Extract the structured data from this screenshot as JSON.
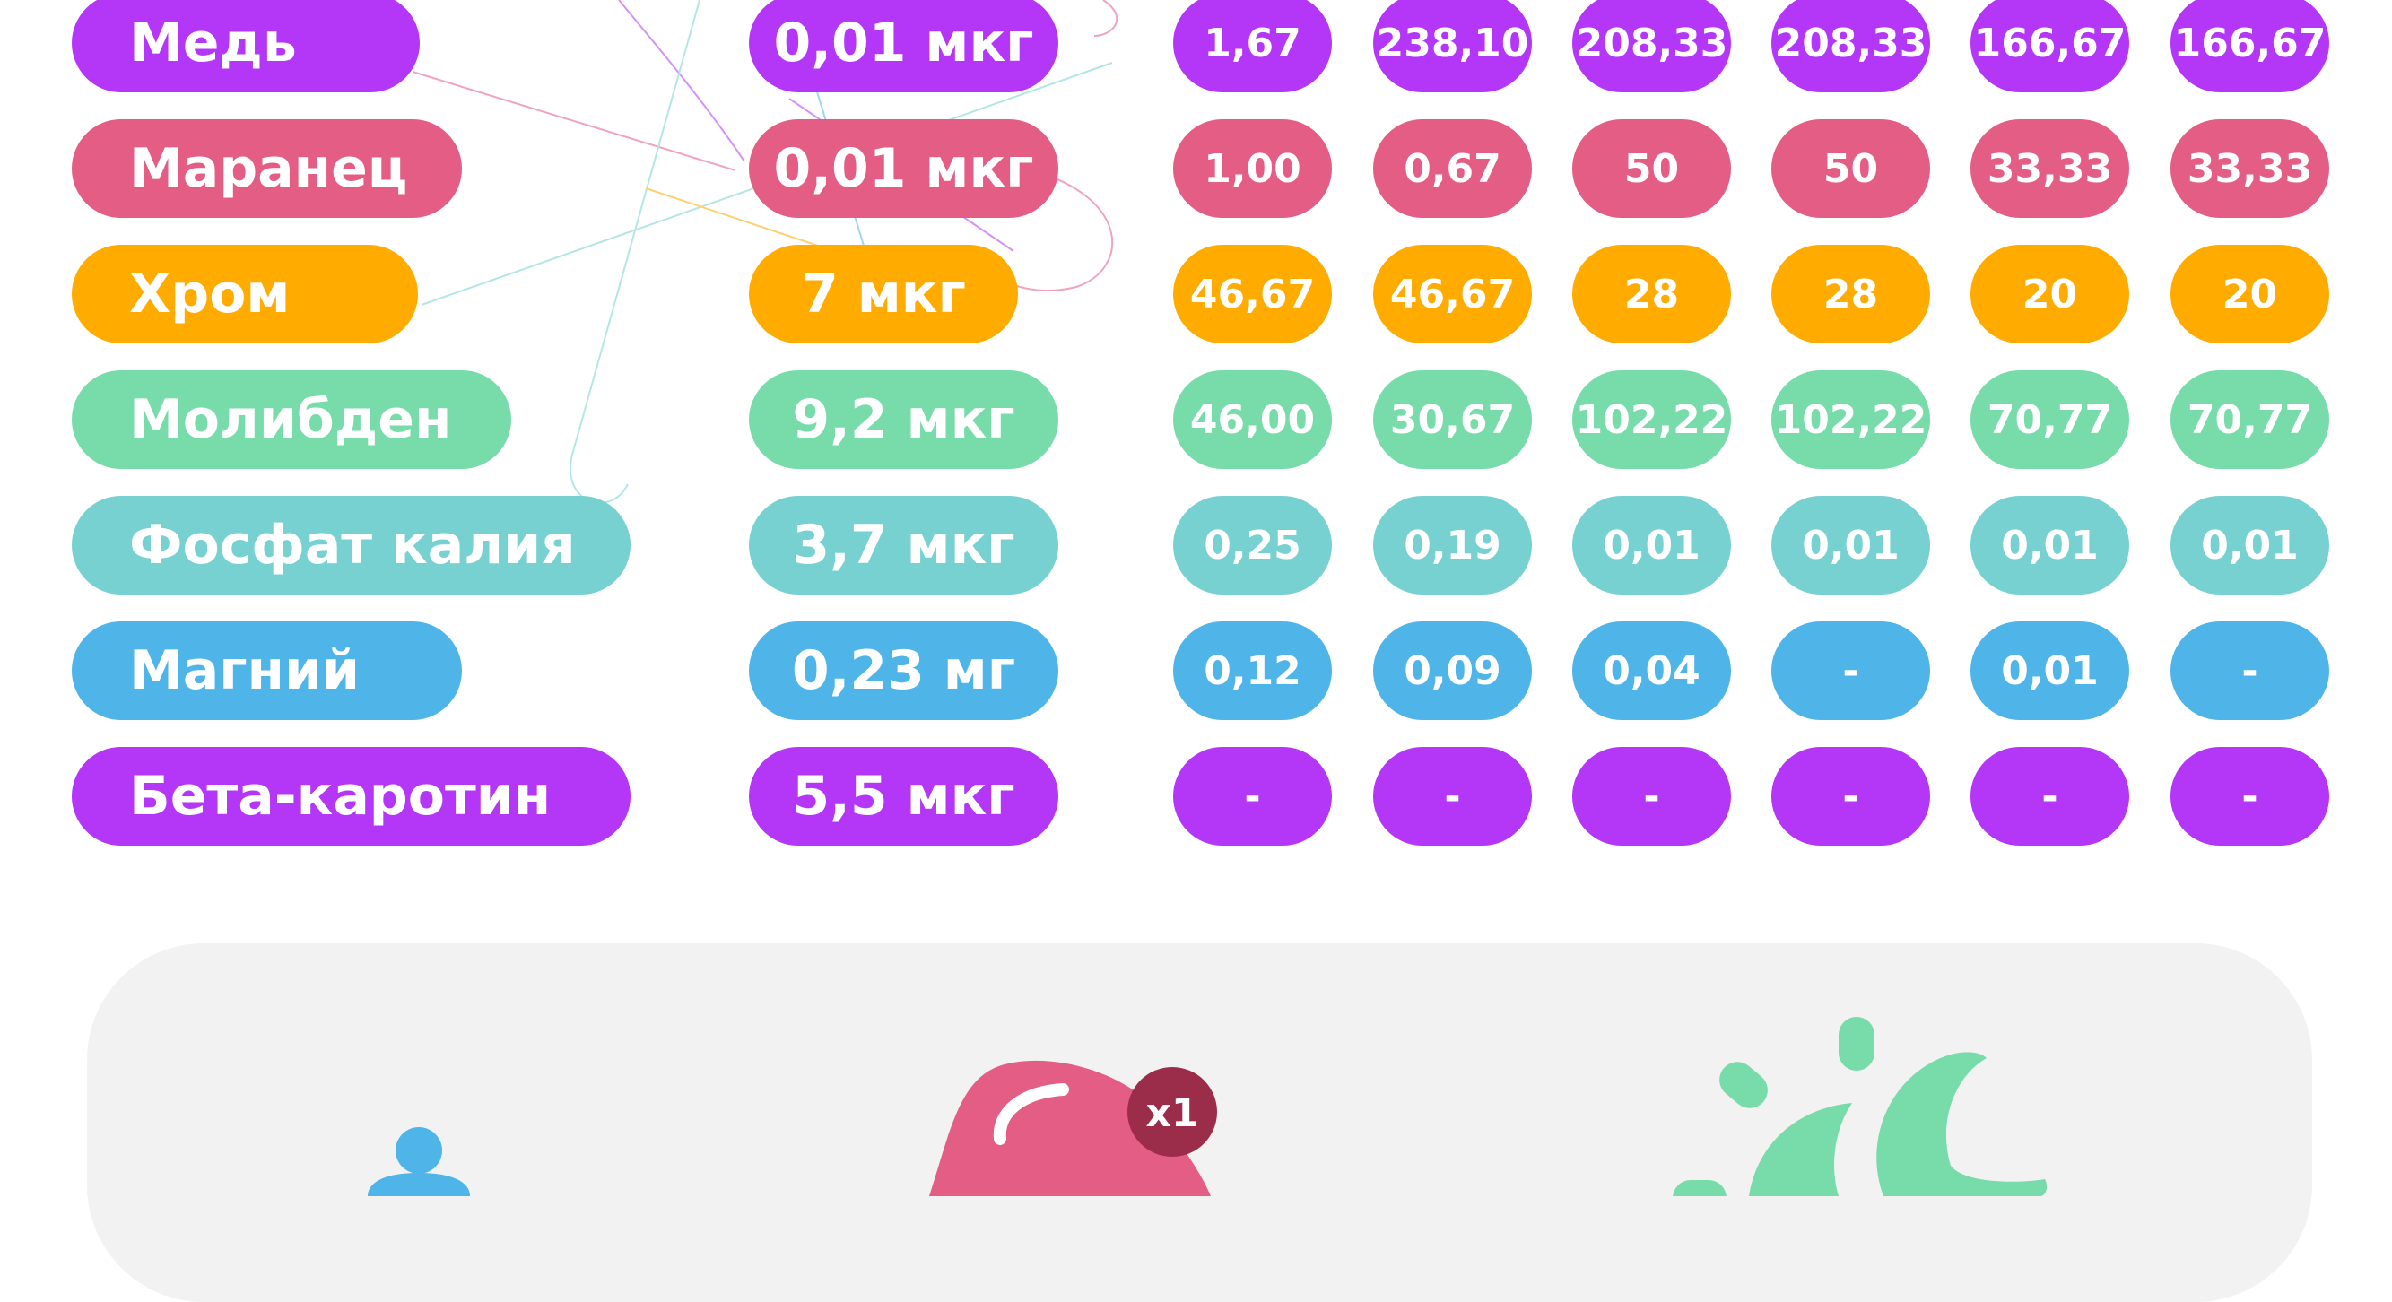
{
  "colors": {
    "purple": "#b436f7",
    "pink": "#e35d84",
    "orange": "#ffab00",
    "green": "#77dbaa",
    "teal": "#78d1d1",
    "blue": "#4fb4e8",
    "panel": "#f2f2f2",
    "badge": "#9b2d4b"
  },
  "rows": [
    {
      "name": "Медь",
      "amount": "0,01 мкг",
      "values": [
        "1,67",
        "238,10",
        "208,33",
        "208,33",
        "166,67",
        "166,67"
      ]
    },
    {
      "name": "Маранец",
      "amount": "0,01 мкг",
      "values": [
        "1,00",
        "0,67",
        "50",
        "50",
        "33,33",
        "33,33"
      ]
    },
    {
      "name": "Хром",
      "amount": "7 мкг",
      "values": [
        "46,67",
        "46,67",
        "28",
        "28",
        "20",
        "20"
      ]
    },
    {
      "name": "Молибден",
      "amount": "9,2 мкг",
      "values": [
        "46,00",
        "30,67",
        "102,22",
        "102,22",
        "70,77",
        "70,77"
      ]
    },
    {
      "name": "Фосфат калия",
      "amount": "3,7 мкг",
      "values": [
        "0,25",
        "0,19",
        "0,01",
        "0,01",
        "0,01",
        "0,01"
      ]
    },
    {
      "name": "Магний",
      "amount": "0,23 мг",
      "values": [
        "0,12",
        "0,09",
        "0,04",
        "-",
        "0,01",
        "-"
      ]
    },
    {
      "name": "Бета-каротин",
      "amount": "5,5 мкг",
      "values": [
        "-",
        "-",
        "-",
        "-",
        "-",
        "-"
      ]
    }
  ],
  "illustrations": {
    "person_icon": "person-icon",
    "bottle_icon": "bottle-icon",
    "badge_text": "x1",
    "sun_moon_icon": "sun-moon-icon"
  }
}
